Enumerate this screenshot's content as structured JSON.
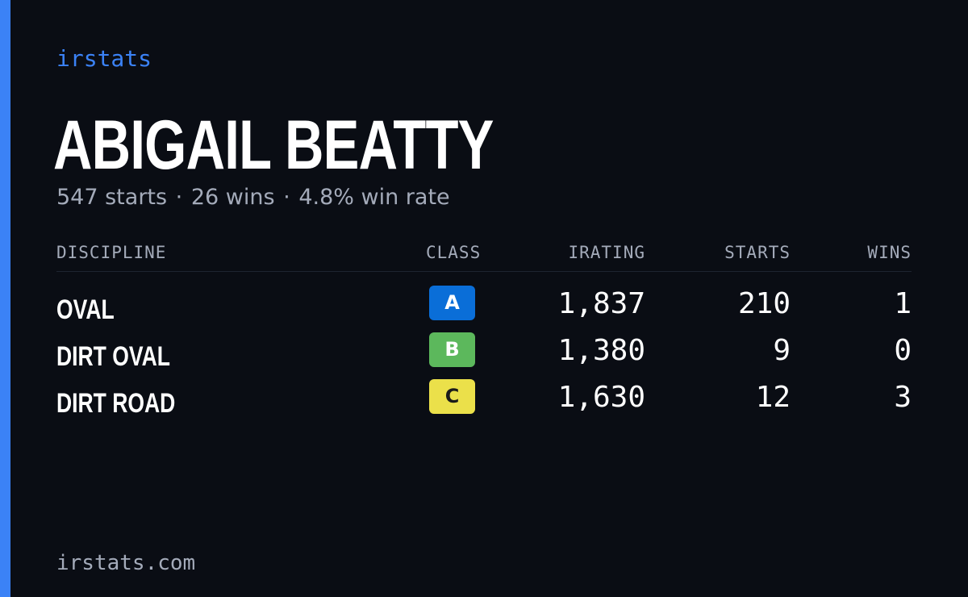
{
  "brand": "irstats",
  "driver": {
    "name": "ABIGAIL BEATTY",
    "summary": {
      "starts": "547 starts",
      "wins": "26 wins",
      "win_rate": "4.8% win rate",
      "separator": "·"
    }
  },
  "table": {
    "headers": {
      "discipline": "DISCIPLINE",
      "class": "CLASS",
      "irating": "IRATING",
      "starts": "STARTS",
      "wins": "WINS"
    },
    "rows": [
      {
        "discipline": "OVAL",
        "class": "A",
        "class_bg": "#0a6ed8",
        "class_fg": "#ffffff",
        "irating": "1,837",
        "starts": "210",
        "wins": "1"
      },
      {
        "discipline": "DIRT OVAL",
        "class": "B",
        "class_bg": "#5cb85c",
        "class_fg": "#ffffff",
        "irating": "1,380",
        "starts": "9",
        "wins": "0"
      },
      {
        "discipline": "DIRT ROAD",
        "class": "C",
        "class_bg": "#ebe04a",
        "class_fg": "#1a1a1a",
        "irating": "1,630",
        "starts": "12",
        "wins": "3"
      }
    ]
  },
  "footer": {
    "domain": "irstats.com"
  },
  "colors": {
    "background": "#0a0d14",
    "accent": "#3b82f6",
    "muted_text": "#a4abba",
    "primary_text": "#ffffff"
  }
}
